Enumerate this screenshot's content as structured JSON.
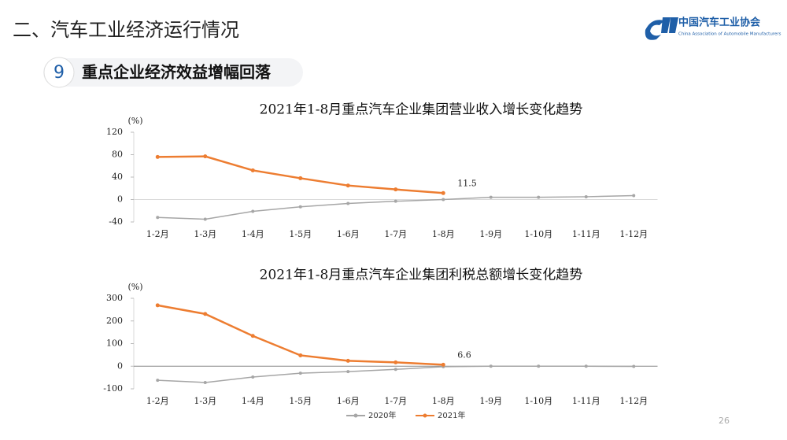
{
  "header": {
    "title": "二、汽车工业经济运行情况",
    "logo_name": "中国汽车工业协会",
    "logo_subtitle": "China Association of Automobile Manufacturers",
    "section_number": "9",
    "section_title": "重点企业经济效益增幅回落"
  },
  "page_number": "26",
  "chart_data": [
    {
      "type": "line",
      "title": "2021年1-8月重点汽车企业集团营业收入增长变化趋势",
      "y_unit": "(%)",
      "categories": [
        "1-2月",
        "1-3月",
        "1-4月",
        "1-5月",
        "1-6月",
        "1-7月",
        "1-8月",
        "1-9月",
        "1-10月",
        "1-11月",
        "1-12月"
      ],
      "ylim": [
        -40,
        120
      ],
      "yticks": [
        -40,
        0,
        40,
        80,
        120
      ],
      "series": [
        {
          "name": "2020年",
          "color": "#a6a6a6",
          "values": [
            -32,
            -35,
            -21,
            -13,
            -7,
            -3,
            0,
            4,
            4,
            5,
            7
          ]
        },
        {
          "name": "2021年",
          "color": "#ed7d31",
          "values": [
            76,
            77,
            52,
            38,
            25,
            18,
            11.5,
            null,
            null,
            null,
            null
          ]
        }
      ]
    },
    {
      "type": "line",
      "title": "2021年1-8月重点汽车企业集团利税总额增长变化趋势",
      "y_unit": "(%)",
      "categories": [
        "1-2月",
        "1-3月",
        "1-4月",
        "1-5月",
        "1-6月",
        "1-7月",
        "1-8月",
        "1-9月",
        "1-10月",
        "1-11月",
        "1-12月"
      ],
      "ylim": [
        -100,
        300
      ],
      "yticks": [
        -100,
        0,
        100,
        200,
        300
      ],
      "series": [
        {
          "name": "2020年",
          "color": "#a6a6a6",
          "values": [
            -62,
            -72,
            -48,
            -31,
            -24,
            -14,
            -2,
            0,
            0,
            0,
            -1
          ]
        },
        {
          "name": "2021年",
          "color": "#ed7d31",
          "values": [
            269,
            231,
            134,
            48,
            24,
            17,
            6.6,
            null,
            null,
            null,
            null
          ]
        }
      ]
    }
  ]
}
